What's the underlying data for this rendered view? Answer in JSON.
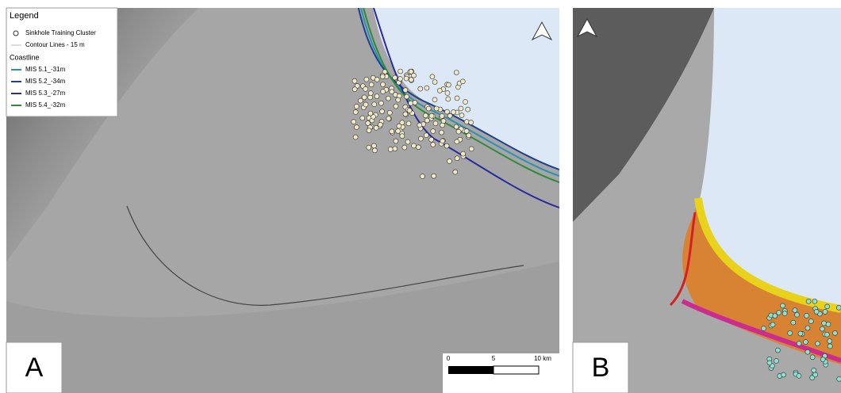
{
  "panel_a": {
    "label": "A",
    "legend": {
      "title": "Legend",
      "items": [
        {
          "label": "Sinkhole Training Cluster"
        },
        {
          "label": "Contour Lines - 15 m"
        }
      ],
      "coastline_title": "Coastline",
      "coastlines": [
        {
          "label": "MIS 5.1_-31m",
          "color": "#2a93b0"
        },
        {
          "label": "MIS 5.2_-34m",
          "color": "#1f3f8f"
        },
        {
          "label": "MIS 5.3_-27m",
          "color": "#2a2aa0"
        },
        {
          "label": "MIS 5.4_-32m",
          "color": "#2e8b3a"
        }
      ]
    },
    "scale_bar": {
      "labels": [
        "0",
        "5",
        "10 km"
      ]
    }
  },
  "panel_b": {
    "label": "B"
  }
}
